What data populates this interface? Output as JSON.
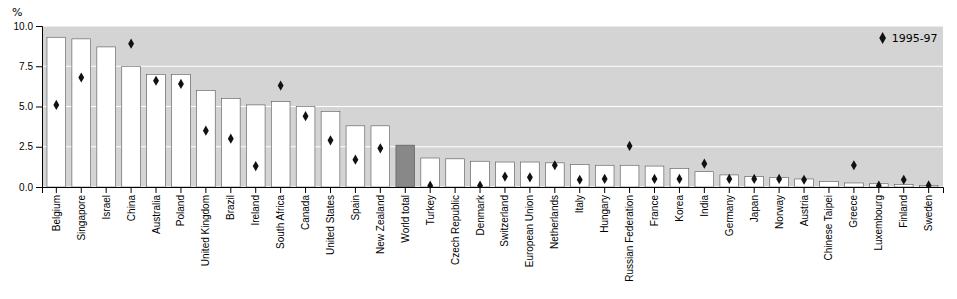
{
  "chart_data": {
    "type": "bar",
    "categories": [
      "Belgium",
      "Singapore",
      "Israel",
      "China",
      "Australia",
      "Poland",
      "United Kingdom",
      "Brazil",
      "Ireland",
      "South Africa",
      "Canada",
      "United States",
      "Spain",
      "New Zealand",
      "World total",
      "Turkey",
      "Czech Republic",
      "Denmark",
      "Switzerland",
      "European Union",
      "Netherlands",
      "Italy",
      "Hungary",
      "Russian Federation",
      "France",
      "Korea",
      "India",
      "Germany",
      "Japan",
      "Norway",
      "Austria",
      "Chinese Taipei",
      "Greece",
      "Luxembourg",
      "Finland",
      "Sweden"
    ],
    "series": [
      {
        "type": "bar",
        "colors": [
          "#ffffff",
          "#ffffff",
          "#ffffff",
          "#ffffff",
          "#ffffff",
          "#ffffff",
          "#ffffff",
          "#ffffff",
          "#ffffff",
          "#ffffff",
          "#ffffff",
          "#ffffff",
          "#ffffff",
          "#ffffff",
          "#888888",
          "#ffffff",
          "#ffffff",
          "#ffffff",
          "#ffffff",
          "#ffffff",
          "#ffffff",
          "#ffffff",
          "#ffffff",
          "#ffffff",
          "#ffffff",
          "#ffffff",
          "#ffffff",
          "#ffffff",
          "#ffffff",
          "#ffffff",
          "#ffffff",
          "#ffffff",
          "#ffffff",
          "#ffffff",
          "#ffffff",
          "#ffffff"
        ],
        "values": [
          9.3,
          9.2,
          8.7,
          7.5,
          7.0,
          7.0,
          6.0,
          5.5,
          5.1,
          5.3,
          5.0,
          4.7,
          3.8,
          3.8,
          2.6,
          1.8,
          1.75,
          1.6,
          1.55,
          1.55,
          1.5,
          1.4,
          1.35,
          1.35,
          1.3,
          1.15,
          0.95,
          0.75,
          0.65,
          0.6,
          0.5,
          0.35,
          0.25,
          0.2,
          0.15,
          0.1
        ]
      },
      {
        "type": "scatter",
        "name": "1995-97",
        "marker": "diamond",
        "color": "#111111",
        "values": [
          5.1,
          6.8,
          null,
          8.9,
          6.6,
          6.4,
          3.5,
          3.0,
          1.3,
          6.3,
          4.4,
          2.9,
          1.7,
          2.4,
          null,
          0.08,
          null,
          0.08,
          0.65,
          0.6,
          1.35,
          0.45,
          0.5,
          2.55,
          0.5,
          0.5,
          1.45,
          0.5,
          0.5,
          0.5,
          0.45,
          null,
          1.35,
          0.08,
          0.45,
          0.1
        ]
      }
    ],
    "ylabel": "%",
    "ylim": [
      0.0,
      10.0
    ],
    "yticks": [
      {
        "value": 0.0,
        "label": "0.0"
      },
      2.5,
      {
        "value": 5.0,
        "label": "5.0"
      },
      7.5,
      {
        "value": 10.0,
        "label": "10.0"
      }
    ],
    "grid": true,
    "legend": "upper right"
  }
}
